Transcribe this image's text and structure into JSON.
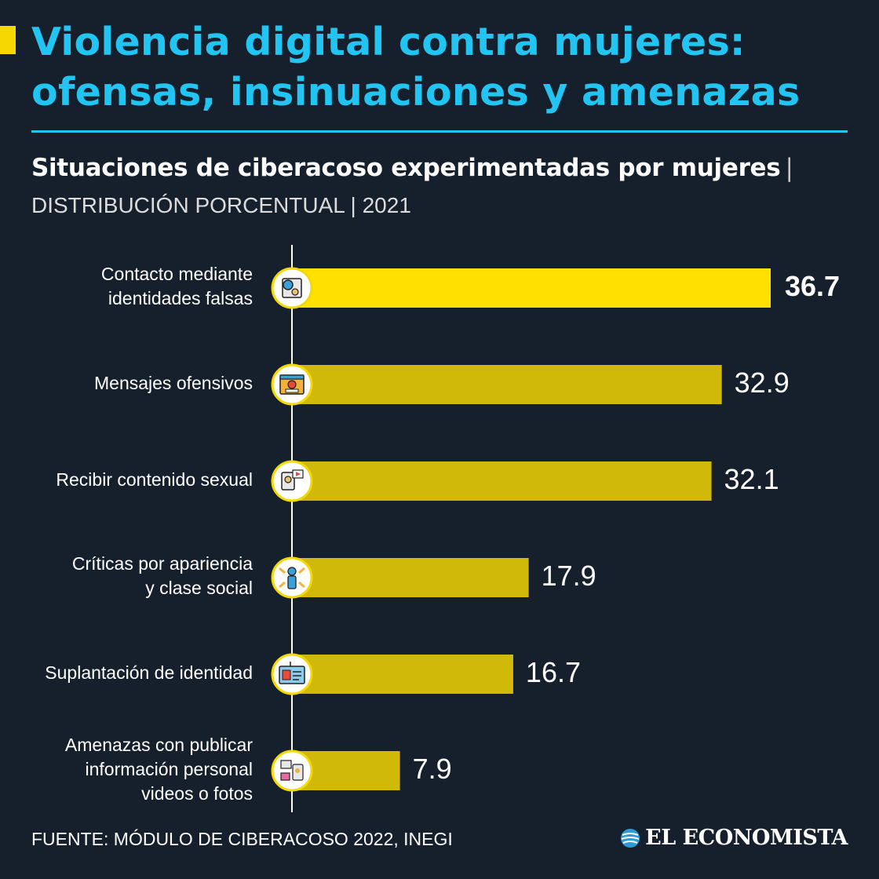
{
  "header": {
    "title_lines": [
      "Violencia digital contra mujeres:",
      "ofensas, insinuaciones y amenazas"
    ],
    "subtitle": "Situaciones de ciberacoso experimentadas por mujeres",
    "subtitle_sep": "|",
    "subtitle2": "DISTRIBUCIÓN PORCENTUAL | 2021"
  },
  "colors": {
    "title": "#22c4f2",
    "accent": "#f5d800",
    "top_bar": "#ffe000",
    "bar": "#d1b90a",
    "background": "#16202c"
  },
  "chart_data": {
    "type": "bar",
    "orientation": "horizontal",
    "categories": [
      [
        "Contacto mediante",
        "identidades falsas"
      ],
      [
        "Mensajes ofensivos"
      ],
      [
        "Recibir contenido sexual"
      ],
      [
        "Críticas por apariencia",
        "y clase social"
      ],
      [
        "Suplantación de identidad"
      ],
      [
        "Amenazas con publicar",
        "información personal",
        "videos o fotos"
      ]
    ],
    "values": [
      36.7,
      32.9,
      32.1,
      17.9,
      16.7,
      7.9
    ],
    "value_labels": [
      "36.7",
      "32.9",
      "32.1",
      "17.9",
      "16.7",
      "7.9"
    ],
    "icons": [
      "fake-identity-icon",
      "offensive-message-icon",
      "sexual-content-icon",
      "appearance-criticism-icon",
      "identity-theft-icon",
      "personal-info-threat-icon"
    ],
    "highlight_index": 0,
    "xlim": [
      0,
      36.7
    ],
    "grid": false,
    "legend": "none"
  },
  "footer": {
    "source": "FUENTE: MÓDULO DE CIBERACOSO 2022, INEGI",
    "logo": "EL ECONOMISTA"
  }
}
